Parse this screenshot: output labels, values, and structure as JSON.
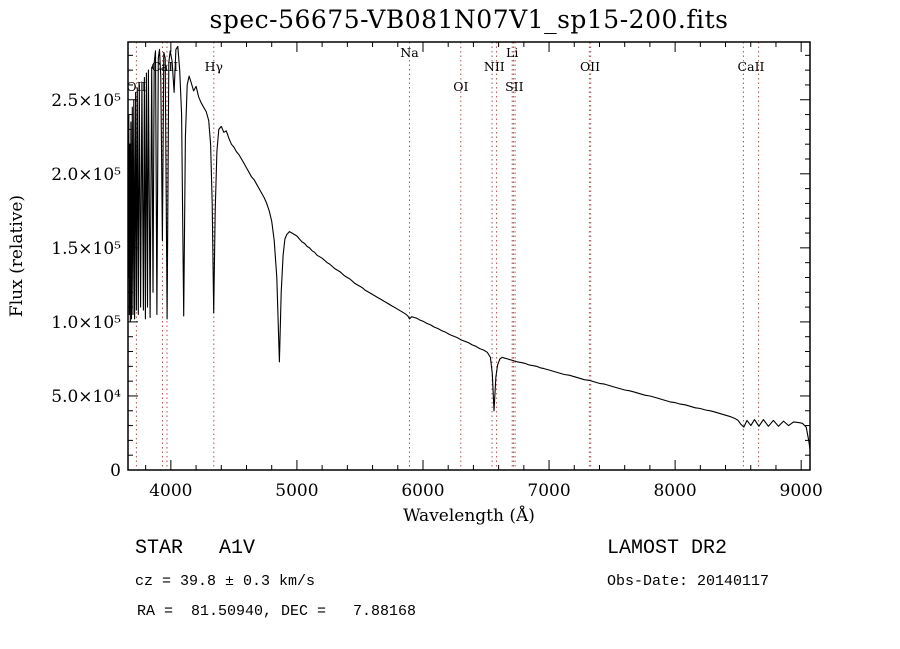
{
  "chart_data": {
    "type": "line",
    "title": "spec-56675-VB081N07V1_sp15-200.fits",
    "xlabel": "Wavelength (Å)",
    "ylabel": "Flux (relative)",
    "xlim": [
      3660,
      9070
    ],
    "ylim": [
      0,
      289000
    ],
    "grid": false,
    "legend": "none",
    "line_color": "#000000",
    "axis_color": "#000000",
    "marker_line_color": "#aa5555",
    "x_ticks": {
      "values": [
        4000,
        5000,
        6000,
        7000,
        8000,
        9000
      ],
      "labels": [
        "4000",
        "5000",
        "6000",
        "7000",
        "8000",
        "9000"
      ]
    },
    "y_ticks": {
      "values": [
        0,
        50000,
        100000,
        150000,
        200000,
        250000
      ],
      "labels": [
        "0",
        "5.0×10⁴",
        "1.0×10⁵",
        "1.5×10⁵",
        "2.0×10⁵",
        "2.5×10⁵"
      ]
    },
    "x_minor_interval": 200,
    "y_minor_interval": 10000,
    "line_markers": [
      {
        "label": "OII",
        "row": 3,
        "wavelengths": [
          3727
        ]
      },
      {
        "label": "CaII",
        "row": 2,
        "wavelengths": [
          3934,
          3969
        ]
      },
      {
        "label": "Hγ",
        "row": 2,
        "wavelengths": [
          4341
        ]
      },
      {
        "label": "Na",
        "row": 1,
        "wavelengths": [
          5893
        ]
      },
      {
        "label": "OI",
        "row": 3,
        "wavelengths": [
          6300
        ]
      },
      {
        "label": "NII",
        "row": 2,
        "wavelengths": [
          6548,
          6584
        ]
      },
      {
        "label": "Li",
        "row": 1,
        "wavelengths": [
          6708
        ]
      },
      {
        "label": "SII",
        "row": 3,
        "wavelengths": [
          6717,
          6731
        ]
      },
      {
        "label": "OII",
        "row": 2,
        "wavelengths": [
          7320,
          7330
        ]
      },
      {
        "label": "CaII",
        "row": 2,
        "wavelengths": [
          8542,
          8662
        ]
      }
    ],
    "series": [
      {
        "name": "spectrum",
        "points": [
          [
            3662,
            130000
          ],
          [
            3666,
            240000
          ],
          [
            3670,
            105000
          ],
          [
            3674,
            220000
          ],
          [
            3678,
            100000
          ],
          [
            3683,
            235000
          ],
          [
            3688,
            102000
          ],
          [
            3694,
            245000
          ],
          [
            3700,
            105000
          ],
          [
            3706,
            250000
          ],
          [
            3712,
            102000
          ],
          [
            3720,
            255000
          ],
          [
            3727,
            108000
          ],
          [
            3734,
            258000
          ],
          [
            3742,
            105000
          ],
          [
            3750,
            260000
          ],
          [
            3760,
            110000
          ],
          [
            3770,
            262000
          ],
          [
            3782,
            108000
          ],
          [
            3790,
            265000
          ],
          [
            3798,
            102000
          ],
          [
            3806,
            268000
          ],
          [
            3815,
            110000
          ],
          [
            3822,
            270000
          ],
          [
            3835,
            103000
          ],
          [
            3848,
            272000
          ],
          [
            3858,
            120000
          ],
          [
            3868,
            275000
          ],
          [
            3878,
            283000
          ],
          [
            3889,
            105000
          ],
          [
            3900,
            278000
          ],
          [
            3910,
            284000
          ],
          [
            3920,
            265000
          ],
          [
            3933,
            155000
          ],
          [
            3944,
            282000
          ],
          [
            3955,
            278000
          ],
          [
            3970,
            102000
          ],
          [
            3984,
            275000
          ],
          [
            3995,
            283000
          ],
          [
            4010,
            276000
          ],
          [
            4026,
            255000
          ],
          [
            4040,
            284000
          ],
          [
            4055,
            286000
          ],
          [
            4070,
            270000
          ],
          [
            4085,
            240000
          ],
          [
            4102,
            104000
          ],
          [
            4115,
            225000
          ],
          [
            4130,
            260000
          ],
          [
            4145,
            266000
          ],
          [
            4160,
            262000
          ],
          [
            4180,
            256000
          ],
          [
            4200,
            259000
          ],
          [
            4220,
            252000
          ],
          [
            4240,
            248000
          ],
          [
            4260,
            245000
          ],
          [
            4280,
            242000
          ],
          [
            4300,
            236000
          ],
          [
            4315,
            220000
          ],
          [
            4328,
            180000
          ],
          [
            4340,
            106000
          ],
          [
            4352,
            175000
          ],
          [
            4365,
            215000
          ],
          [
            4380,
            230000
          ],
          [
            4400,
            232000
          ],
          [
            4420,
            228000
          ],
          [
            4440,
            229000
          ],
          [
            4460,
            224000
          ],
          [
            4480,
            220000
          ],
          [
            4500,
            218000
          ],
          [
            4520,
            215000
          ],
          [
            4540,
            213000
          ],
          [
            4560,
            210000
          ],
          [
            4580,
            207000
          ],
          [
            4600,
            204000
          ],
          [
            4620,
            201000
          ],
          [
            4640,
            198000
          ],
          [
            4660,
            196000
          ],
          [
            4680,
            193000
          ],
          [
            4700,
            190000
          ],
          [
            4720,
            187000
          ],
          [
            4740,
            184000
          ],
          [
            4760,
            180000
          ],
          [
            4780,
            175000
          ],
          [
            4800,
            168000
          ],
          [
            4820,
            155000
          ],
          [
            4840,
            130000
          ],
          [
            4861,
            73000
          ],
          [
            4875,
            120000
          ],
          [
            4890,
            145000
          ],
          [
            4905,
            156000
          ],
          [
            4920,
            159000
          ],
          [
            4940,
            161000
          ],
          [
            4960,
            160000
          ],
          [
            4980,
            159000
          ],
          [
            5000,
            158000
          ],
          [
            5020,
            156000
          ],
          [
            5040,
            154000
          ],
          [
            5060,
            153000
          ],
          [
            5080,
            151000
          ],
          [
            5100,
            150000
          ],
          [
            5120,
            148000
          ],
          [
            5140,
            147000
          ],
          [
            5160,
            145000
          ],
          [
            5180,
            144000
          ],
          [
            5200,
            143000
          ],
          [
            5220,
            141500
          ],
          [
            5240,
            140000
          ],
          [
            5260,
            139000
          ],
          [
            5280,
            137500
          ],
          [
            5300,
            136000
          ],
          [
            5320,
            135000
          ],
          [
            5340,
            134000
          ],
          [
            5360,
            132500
          ],
          [
            5380,
            131000
          ],
          [
            5400,
            130000
          ],
          [
            5420,
            129000
          ],
          [
            5440,
            127500
          ],
          [
            5460,
            126000
          ],
          [
            5480,
            125000
          ],
          [
            5500,
            124000
          ],
          [
            5520,
            123000
          ],
          [
            5540,
            121500
          ],
          [
            5560,
            120500
          ],
          [
            5580,
            119500
          ],
          [
            5600,
            118500
          ],
          [
            5620,
            117500
          ],
          [
            5640,
            116500
          ],
          [
            5660,
            115500
          ],
          [
            5680,
            114500
          ],
          [
            5700,
            113500
          ],
          [
            5720,
            112500
          ],
          [
            5740,
            111500
          ],
          [
            5760,
            110500
          ],
          [
            5780,
            109500
          ],
          [
            5800,
            108500
          ],
          [
            5820,
            107500
          ],
          [
            5840,
            106500
          ],
          [
            5860,
            105500
          ],
          [
            5880,
            104000
          ],
          [
            5893,
            102000
          ],
          [
            5910,
            103500
          ],
          [
            5930,
            103000
          ],
          [
            5950,
            102500
          ],
          [
            5970,
            101500
          ],
          [
            6000,
            100500
          ],
          [
            6030,
            99000
          ],
          [
            6060,
            98000
          ],
          [
            6090,
            96500
          ],
          [
            6120,
            95500
          ],
          [
            6150,
            94000
          ],
          [
            6180,
            93000
          ],
          [
            6210,
            91500
          ],
          [
            6240,
            90500
          ],
          [
            6270,
            89500
          ],
          [
            6300,
            88000
          ],
          [
            6330,
            87000
          ],
          [
            6360,
            86000
          ],
          [
            6390,
            84500
          ],
          [
            6420,
            83500
          ],
          [
            6450,
            82000
          ],
          [
            6480,
            81000
          ],
          [
            6510,
            79500
          ],
          [
            6535,
            76000
          ],
          [
            6550,
            65000
          ],
          [
            6563,
            40000
          ],
          [
            6578,
            63000
          ],
          [
            6592,
            71000
          ],
          [
            6610,
            75000
          ],
          [
            6630,
            76000
          ],
          [
            6650,
            75500
          ],
          [
            6670,
            75000
          ],
          [
            6690,
            74500
          ],
          [
            6710,
            74000
          ],
          [
            6730,
            73500
          ],
          [
            6750,
            73000
          ],
          [
            6780,
            72500
          ],
          [
            6810,
            72000
          ],
          [
            6840,
            71000
          ],
          [
            6870,
            70500
          ],
          [
            6900,
            70000
          ],
          [
            6930,
            69000
          ],
          [
            6960,
            68500
          ],
          [
            7000,
            67500
          ],
          [
            7040,
            66500
          ],
          [
            7080,
            65500
          ],
          [
            7120,
            64500
          ],
          [
            7160,
            64000
          ],
          [
            7200,
            63000
          ],
          [
            7240,
            62000
          ],
          [
            7280,
            61000
          ],
          [
            7320,
            60500
          ],
          [
            7360,
            59500
          ],
          [
            7400,
            58500
          ],
          [
            7440,
            58000
          ],
          [
            7480,
            57000
          ],
          [
            7520,
            56000
          ],
          [
            7560,
            55000
          ],
          [
            7600,
            54000
          ],
          [
            7640,
            53500
          ],
          [
            7680,
            52500
          ],
          [
            7720,
            51500
          ],
          [
            7760,
            50500
          ],
          [
            7800,
            50000
          ],
          [
            7840,
            49000
          ],
          [
            7880,
            48000
          ],
          [
            7920,
            47000
          ],
          [
            7960,
            46000
          ],
          [
            8000,
            45500
          ],
          [
            8040,
            44500
          ],
          [
            8080,
            44000
          ],
          [
            8120,
            43000
          ],
          [
            8160,
            42000
          ],
          [
            8200,
            41500
          ],
          [
            8240,
            40500
          ],
          [
            8280,
            40000
          ],
          [
            8320,
            39000
          ],
          [
            8360,
            38000
          ],
          [
            8400,
            37000
          ],
          [
            8440,
            36000
          ],
          [
            8470,
            35000
          ],
          [
            8500,
            33500
          ],
          [
            8520,
            31000
          ],
          [
            8545,
            29000
          ],
          [
            8570,
            33500
          ],
          [
            8600,
            30000
          ],
          [
            8630,
            34000
          ],
          [
            8665,
            29500
          ],
          [
            8700,
            34000
          ],
          [
            8740,
            29500
          ],
          [
            8780,
            33500
          ],
          [
            8820,
            29500
          ],
          [
            8860,
            33000
          ],
          [
            8900,
            30000
          ],
          [
            8940,
            32500
          ],
          [
            8980,
            32000
          ],
          [
            9010,
            31500
          ],
          [
            9040,
            29000
          ],
          [
            9060,
            20000
          ],
          [
            9070,
            14000
          ]
        ]
      }
    ]
  },
  "annotations": {
    "star_class": "STAR   A1V",
    "survey": "LAMOST DR2",
    "cz": "cz = 39.8 ± 0.3 km/s",
    "obs_date": "Obs-Date: 20140117",
    "ra_dec": "RA =  81.50940, DEC =   7.88168"
  }
}
